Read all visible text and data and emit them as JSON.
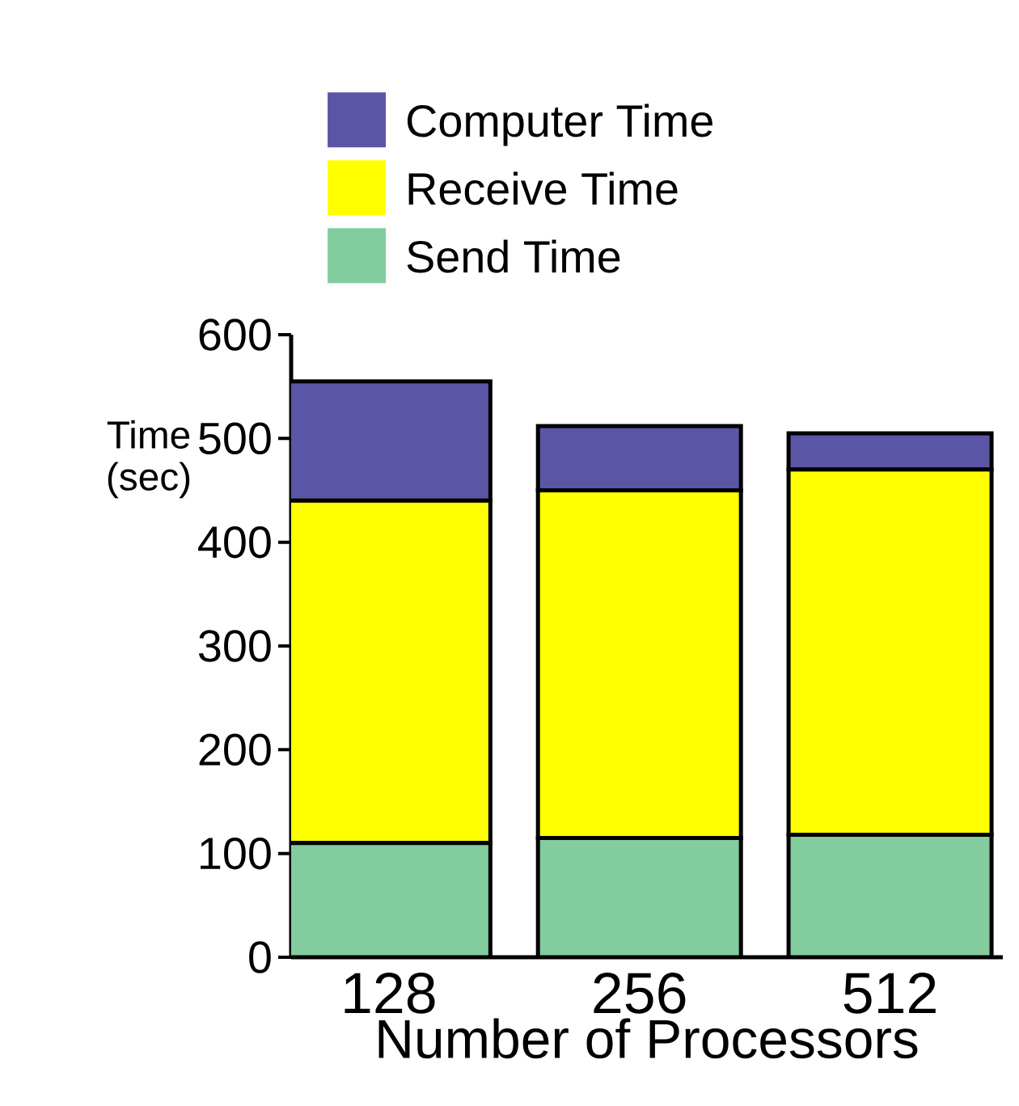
{
  "chart_data": {
    "type": "bar",
    "stacked": true,
    "xlabel": "Number of Processors",
    "ylabel": "Time (sec)",
    "categories": [
      "128",
      "256",
      "512"
    ],
    "series": [
      {
        "name": "Send Time",
        "color": "#82cc9e",
        "values": [
          110,
          115,
          118
        ]
      },
      {
        "name": "Receive Time",
        "color": "#ffff00",
        "values": [
          330,
          335,
          352
        ]
      },
      {
        "name": "Computer Time",
        "color": "#5b55a5",
        "values": [
          115,
          62,
          35
        ]
      }
    ],
    "ylim": [
      0,
      600
    ],
    "yticks": [
      0,
      100,
      200,
      300,
      400,
      500,
      600
    ],
    "grid": false,
    "legend": "top"
  }
}
